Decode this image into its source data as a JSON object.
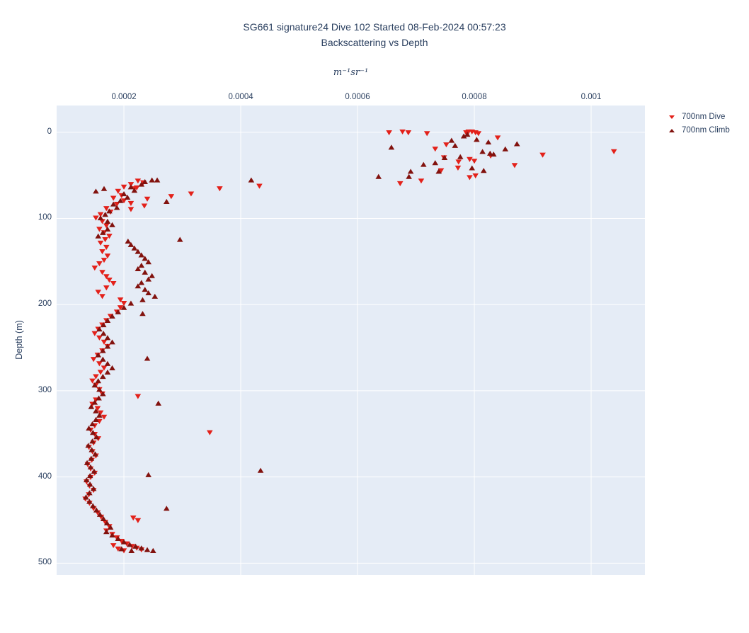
{
  "chart_data": {
    "type": "scatter",
    "title": "SG661 signature24 Dive 102 Started 08-Feb-2024 00:57:23",
    "subtitle": "Backscattering vs Depth",
    "xlabel": "m⁻¹sr⁻¹",
    "ylabel": "Depth (m)",
    "x_axis": {
      "side": "top",
      "range": [
        8.48e-05,
        0.0010921
      ],
      "ticks": [
        0.0002,
        0.0004,
        0.0006,
        0.0008,
        0.001
      ],
      "tick_labels": [
        "0.0002",
        "0.0004",
        "0.0006",
        "0.0008",
        "0.001"
      ]
    },
    "y_axis": {
      "reversed": true,
      "range": [
        -31.0,
        513.7
      ],
      "ticks": [
        0,
        100,
        200,
        300,
        400,
        500
      ],
      "tick_labels": [
        "0",
        "100",
        "200",
        "300",
        "400",
        "500"
      ]
    },
    "grid": true,
    "legend_position": "top-right-outside",
    "colors": {
      "plot_background": "#e5ecf6",
      "gridline": "#ffffff",
      "text": "#2a3f5f",
      "dive": "#e3211a",
      "climb": "#82120e"
    },
    "series": [
      {
        "name": "700nm Dive",
        "marker": "triangle-down",
        "color": "#e3211a",
        "points": [
          [
            0.000654,
            0
          ],
          [
            0.000677,
            -1
          ],
          [
            0.000687,
            0
          ],
          [
            0.000719,
            1
          ],
          [
            0.000786,
            0
          ],
          [
            0.00079,
            -1
          ],
          [
            0.000796,
            -1
          ],
          [
            0.000802,
            0
          ],
          [
            0.000807,
            1
          ],
          [
            0.00084,
            6
          ],
          [
            0.000733,
            19
          ],
          [
            0.000752,
            14
          ],
          [
            0.000773,
            34
          ],
          [
            0.000792,
            31
          ],
          [
            0.0008,
            33
          ],
          [
            0.000828,
            27
          ],
          [
            0.000869,
            38
          ],
          [
            0.000917,
            26
          ],
          [
            0.001039,
            22
          ],
          [
            0.000748,
            29
          ],
          [
            0.000772,
            41
          ],
          [
            0.000743,
            44
          ],
          [
            0.000792,
            52
          ],
          [
            0.000802,
            50
          ],
          [
            0.000709,
            56
          ],
          [
            0.000673,
            59
          ],
          [
            0.000432,
            62
          ],
          [
            0.000364,
            65
          ],
          [
            0.000315,
            71
          ],
          [
            0.000281,
            74
          ],
          [
            0.000347,
            348
          ],
          [
            0.000224,
            450
          ],
          [
            0.000216,
            447
          ],
          [
            0.000224,
            56
          ],
          [
            0.000233,
            58
          ],
          [
            0.000212,
            60
          ],
          [
            0.000222,
            64
          ],
          [
            0.0002,
            63
          ],
          [
            0.000218,
            65
          ],
          [
            0.00019,
            68
          ],
          [
            0.000196,
            73
          ],
          [
            0.00024,
            77
          ],
          [
            0.000182,
            76
          ],
          [
            0.0002,
            79
          ],
          [
            0.000212,
            82
          ],
          [
            0.000188,
            83
          ],
          [
            0.000235,
            85
          ],
          [
            0.00017,
            88
          ],
          [
            0.000212,
            89
          ],
          [
            0.000177,
            92
          ],
          [
            0.00016,
            95
          ],
          [
            0.000152,
            99
          ],
          [
            0.000163,
            103
          ],
          [
            0.00017,
            108
          ],
          [
            0.000158,
            112
          ],
          [
            0.000166,
            116
          ],
          [
            0.000175,
            120
          ],
          [
            0.000168,
            124
          ],
          [
            0.00016,
            128
          ],
          [
            0.00017,
            133
          ],
          [
            0.000163,
            138
          ],
          [
            0.000172,
            143
          ],
          [
            0.000166,
            148
          ],
          [
            0.000158,
            152
          ],
          [
            0.00015,
            157
          ],
          [
            0.000163,
            162
          ],
          [
            0.00017,
            167
          ],
          [
            0.000175,
            171
          ],
          [
            0.000182,
            175
          ],
          [
            0.00017,
            180
          ],
          [
            0.000156,
            185
          ],
          [
            0.000163,
            190
          ],
          [
            0.000194,
            194
          ],
          [
            0.0002,
            198
          ],
          [
            0.000194,
            203
          ],
          [
            0.000188,
            208
          ],
          [
            0.000177,
            213
          ],
          [
            0.00017,
            218
          ],
          [
            0.000163,
            223
          ],
          [
            0.000156,
            228
          ],
          [
            0.00015,
            233
          ],
          [
            0.000158,
            238
          ],
          [
            0.000166,
            243
          ],
          [
            0.000172,
            248
          ],
          [
            0.000163,
            253
          ],
          [
            0.000155,
            258
          ],
          [
            0.000148,
            263
          ],
          [
            0.000158,
            268
          ],
          [
            0.000166,
            273
          ],
          [
            0.00016,
            278
          ],
          [
            0.000152,
            283
          ],
          [
            0.000146,
            288
          ],
          [
            0.000152,
            293
          ],
          [
            0.000158,
            298
          ],
          [
            0.000163,
            303
          ],
          [
            0.000224,
            306
          ],
          [
            0.000152,
            310
          ],
          [
            0.000146,
            315
          ],
          [
            0.000155,
            320
          ],
          [
            0.00016,
            325
          ],
          [
            0.000166,
            330
          ],
          [
            0.000158,
            335
          ],
          [
            0.00015,
            340
          ],
          [
            0.000143,
            345
          ],
          [
            0.00015,
            350
          ],
          [
            0.000156,
            355
          ],
          [
            0.000148,
            360
          ],
          [
            0.00014,
            365
          ],
          [
            0.000146,
            370
          ],
          [
            0.000152,
            375
          ],
          [
            0.000145,
            380
          ],
          [
            0.000138,
            385
          ],
          [
            0.000143,
            390
          ],
          [
            0.00015,
            395
          ],
          [
            0.000143,
            400
          ],
          [
            0.000136,
            405
          ],
          [
            0.000141,
            410
          ],
          [
            0.000148,
            415
          ],
          [
            0.00014,
            420
          ],
          [
            0.000134,
            425
          ],
          [
            0.000141,
            430
          ],
          [
            0.000148,
            436
          ],
          [
            0.000155,
            441
          ],
          [
            0.000161,
            446
          ],
          [
            0.000168,
            452
          ],
          [
            0.000175,
            457
          ],
          [
            0.00017,
            462
          ],
          [
            0.00018,
            466
          ],
          [
            0.000188,
            470
          ],
          [
            0.000196,
            474
          ],
          [
            0.000205,
            477
          ],
          [
            0.000214,
            480
          ],
          [
            0.000222,
            482
          ],
          [
            0.00023,
            484
          ],
          [
            0.0002,
            485
          ],
          [
            0.00019,
            483
          ],
          [
            0.000182,
            479
          ]
        ]
      },
      {
        "name": "700nm Climb",
        "marker": "triangle-up",
        "color": "#82120e",
        "points": [
          [
            0.000658,
            18
          ],
          [
            0.000761,
            10
          ],
          [
            0.000767,
            16
          ],
          [
            0.000782,
            5
          ],
          [
            0.000788,
            3
          ],
          [
            0.000804,
            9
          ],
          [
            0.000824,
            12
          ],
          [
            0.000853,
            20
          ],
          [
            0.000873,
            14
          ],
          [
            0.000814,
            23
          ],
          [
            0.000827,
            25
          ],
          [
            0.000833,
            26
          ],
          [
            0.000776,
            29
          ],
          [
            0.000749,
            30
          ],
          [
            0.000713,
            38
          ],
          [
            0.000733,
            36
          ],
          [
            0.000739,
            46
          ],
          [
            0.000691,
            46
          ],
          [
            0.000688,
            52
          ],
          [
            0.000636,
            52
          ],
          [
            0.000796,
            42
          ],
          [
            0.000816,
            45
          ],
          [
            0.000418,
            56
          ],
          [
            0.000273,
            81
          ],
          [
            0.000296,
            125
          ],
          [
            0.000259,
            315
          ],
          [
            0.000434,
            393
          ],
          [
            0.000242,
            398
          ],
          [
            0.000273,
            437
          ],
          [
            0.000248,
            56
          ],
          [
            0.000257,
            56
          ],
          [
            0.000236,
            58
          ],
          [
            0.00023,
            61
          ],
          [
            0.000212,
            64
          ],
          [
            0.000218,
            68
          ],
          [
            0.000166,
            66
          ],
          [
            0.000152,
            69
          ],
          [
            0.0002,
            72
          ],
          [
            0.000206,
            76
          ],
          [
            0.000194,
            80
          ],
          [
            0.000182,
            84
          ],
          [
            0.000188,
            88
          ],
          [
            0.000175,
            92
          ],
          [
            0.000168,
            96
          ],
          [
            0.00016,
            100
          ],
          [
            0.000172,
            104
          ],
          [
            0.00018,
            108
          ],
          [
            0.000172,
            113
          ],
          [
            0.000164,
            117
          ],
          [
            0.000156,
            121
          ],
          [
            0.000207,
            127
          ],
          [
            0.000212,
            131
          ],
          [
            0.000218,
            135
          ],
          [
            0.000224,
            139
          ],
          [
            0.00023,
            143
          ],
          [
            0.000236,
            147
          ],
          [
            0.000242,
            151
          ],
          [
            0.00023,
            155
          ],
          [
            0.000224,
            159
          ],
          [
            0.000236,
            163
          ],
          [
            0.000248,
            167
          ],
          [
            0.000242,
            171
          ],
          [
            0.00023,
            175
          ],
          [
            0.000224,
            179
          ],
          [
            0.000236,
            183
          ],
          [
            0.000242,
            187
          ],
          [
            0.000253,
            191
          ],
          [
            0.000232,
            195
          ],
          [
            0.000212,
            199
          ],
          [
            0.000232,
            211
          ],
          [
            0.0002,
            204
          ],
          [
            0.00019,
            209
          ],
          [
            0.00018,
            214
          ],
          [
            0.000172,
            219
          ],
          [
            0.000165,
            224
          ],
          [
            0.000158,
            229
          ],
          [
            0.000165,
            234
          ],
          [
            0.000172,
            239
          ],
          [
            0.00018,
            244
          ],
          [
            0.000172,
            249
          ],
          [
            0.000164,
            254
          ],
          [
            0.00024,
            263
          ],
          [
            0.000156,
            259
          ],
          [
            0.000164,
            264
          ],
          [
            0.000172,
            269
          ],
          [
            0.00018,
            274
          ],
          [
            0.000172,
            279
          ],
          [
            0.000164,
            284
          ],
          [
            0.000156,
            289
          ],
          [
            0.00015,
            294
          ],
          [
            0.000158,
            299
          ],
          [
            0.000164,
            304
          ],
          [
            0.000157,
            309
          ],
          [
            0.00015,
            314
          ],
          [
            0.000144,
            319
          ],
          [
            0.000152,
            324
          ],
          [
            0.000158,
            329
          ],
          [
            0.000152,
            334
          ],
          [
            0.000146,
            339
          ],
          [
            0.00014,
            344
          ],
          [
            0.000147,
            349
          ],
          [
            0.000153,
            354
          ],
          [
            0.000146,
            359
          ],
          [
            0.000139,
            364
          ],
          [
            0.000145,
            369
          ],
          [
            0.000151,
            374
          ],
          [
            0.000144,
            379
          ],
          [
            0.000137,
            384
          ],
          [
            0.000143,
            389
          ],
          [
            0.000149,
            394
          ],
          [
            0.000142,
            399
          ],
          [
            0.000136,
            404
          ],
          [
            0.000142,
            409
          ],
          [
            0.000148,
            414
          ],
          [
            0.000141,
            419
          ],
          [
            0.000135,
            424
          ],
          [
            0.000141,
            429
          ],
          [
            0.000147,
            434
          ],
          [
            0.000153,
            439
          ],
          [
            0.000159,
            444
          ],
          [
            0.000165,
            449
          ],
          [
            0.000171,
            454
          ],
          [
            0.000177,
            459
          ],
          [
            0.00017,
            464
          ],
          [
            0.00018,
            468
          ],
          [
            0.00019,
            472
          ],
          [
            0.0002,
            476
          ],
          [
            0.00021,
            479
          ],
          [
            0.00022,
            481
          ],
          [
            0.00023,
            483
          ],
          [
            0.00024,
            485
          ],
          [
            0.00025,
            486
          ],
          [
            0.000213,
            486
          ],
          [
            0.000196,
            484
          ]
        ]
      }
    ]
  }
}
